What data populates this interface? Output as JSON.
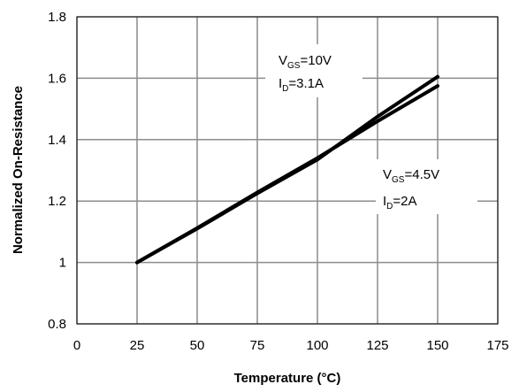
{
  "chart_data": {
    "type": "line",
    "title": "",
    "xlabel": "Temperature (°C)",
    "ylabel": "Normalized On-Resistance",
    "xlim": [
      0,
      175
    ],
    "ylim": [
      0.8,
      1.8
    ],
    "x_ticks": [
      "0",
      "25",
      "50",
      "75",
      "100",
      "125",
      "150",
      "175"
    ],
    "y_ticks": [
      "0.8",
      "1",
      "1.2",
      "1.4",
      "1.6",
      "1.8"
    ],
    "grid": true,
    "series": [
      {
        "x": [
          25,
          50,
          75,
          100,
          125,
          150
        ],
        "values": [
          1.0,
          1.11,
          1.225,
          1.335,
          1.475,
          1.605
        ]
      },
      {
        "x": [
          25,
          50,
          75,
          100,
          125,
          150
        ],
        "values": [
          1.0,
          1.112,
          1.228,
          1.34,
          1.46,
          1.575
        ]
      }
    ],
    "annotations": [
      {
        "main1": "V",
        "sub1": "GS",
        "rest1": "=10V",
        "main2": "I",
        "sub2": "D",
        "rest2": "=3.1A"
      },
      {
        "main1": "V",
        "sub1": "GS",
        "rest1": "=4.5V",
        "main2": "I",
        "sub2": "D",
        "rest2": "=2A"
      }
    ]
  }
}
